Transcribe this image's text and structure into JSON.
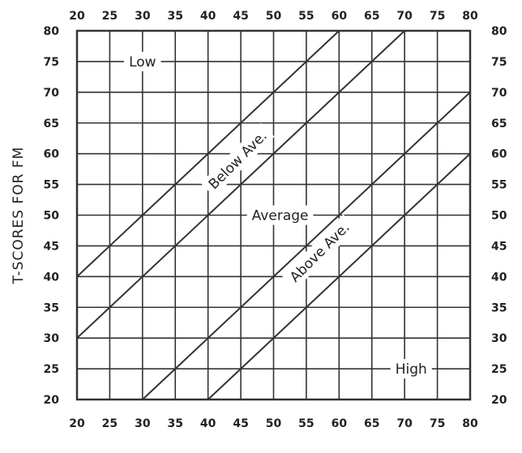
{
  "chart_data": {
    "type": "line",
    "title": "",
    "xlabel": "",
    "ylabel": "T-SCORES FOR FM",
    "xlim": [
      20,
      80
    ],
    "ylim": [
      20,
      80
    ],
    "x_ticks": [
      20,
      25,
      30,
      35,
      40,
      45,
      50,
      55,
      60,
      65,
      70,
      75,
      80
    ],
    "y_ticks": [
      20,
      25,
      30,
      35,
      40,
      45,
      50,
      55,
      60,
      65,
      70,
      75,
      80
    ],
    "grid": true,
    "series": [
      {
        "x": [
          20,
          60
        ],
        "y": [
          40,
          80
        ]
      },
      {
        "x": [
          20,
          70
        ],
        "y": [
          30,
          80
        ]
      },
      {
        "x": [
          30,
          80
        ],
        "y": [
          20,
          70
        ]
      },
      {
        "x": [
          40,
          80
        ],
        "y": [
          20,
          60
        ]
      }
    ],
    "annotations": [
      {
        "text": "Low",
        "x": 30,
        "y": 75,
        "rotation": 0
      },
      {
        "text": "Below Ave.",
        "x": 44.5,
        "y": 59,
        "rotation": -45
      },
      {
        "text": "Average",
        "x": 51,
        "y": 50,
        "rotation": 0
      },
      {
        "text": "Above Ave.",
        "x": 57,
        "y": 44,
        "rotation": -45
      },
      {
        "text": "High",
        "x": 71,
        "y": 25,
        "rotation": 0
      }
    ]
  }
}
